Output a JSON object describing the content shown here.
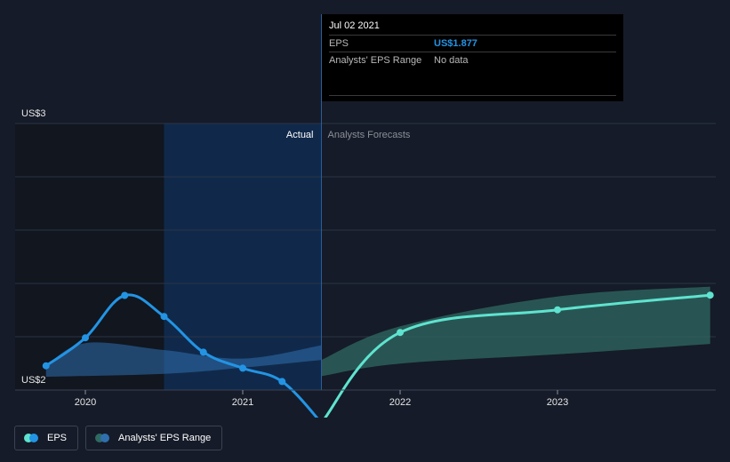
{
  "chart_data": {
    "type": "line",
    "y_axis": {
      "min": 2,
      "max": 3,
      "top_label": "US$3",
      "bottom_label": "US$2",
      "gridlines": [
        2.2,
        2.4,
        2.6,
        2.8
      ]
    },
    "x_axis": {
      "min": 2019.5,
      "max": 2023.97,
      "ticks": [
        2020,
        2021,
        2022,
        2023
      ],
      "tick_labels": [
        "2020",
        "2021",
        "2022",
        "2023"
      ]
    },
    "divider_x": 2021.5,
    "highlight_start_x": 2020.5,
    "region_labels": {
      "actual": "Actual",
      "forecast": "Analysts Forecasts"
    },
    "series": [
      {
        "name": "EPS",
        "kind": "actual",
        "color": "#2394e4",
        "points": [
          {
            "x": 2019.75,
            "y": 2.091
          },
          {
            "x": 2020.0,
            "y": 2.196
          },
          {
            "x": 2020.25,
            "y": 2.355
          },
          {
            "x": 2020.5,
            "y": 2.276
          },
          {
            "x": 2020.75,
            "y": 2.142
          },
          {
            "x": 2021.0,
            "y": 2.082
          },
          {
            "x": 2021.25,
            "y": 2.032
          },
          {
            "x": 2021.5,
            "y": 1.877
          }
        ]
      },
      {
        "name": "EPS",
        "kind": "forecast",
        "color": "#5fe3cf",
        "points": [
          {
            "x": 2021.5,
            "y": 1.877
          },
          {
            "x": 2022.0,
            "y": 2.216
          },
          {
            "x": 2023.0,
            "y": 2.301
          },
          {
            "x": 2023.97,
            "y": 2.356
          }
        ]
      }
    ],
    "range_actual": {
      "name": "Analysts' EPS Range",
      "color": "#2f6fae",
      "upper": [
        {
          "x": 2019.75,
          "y": 2.09
        },
        {
          "x": 2020.0,
          "y": 2.176
        },
        {
          "x": 2020.5,
          "y": 2.15
        },
        {
          "x": 2021.0,
          "y": 2.118
        },
        {
          "x": 2021.5,
          "y": 2.168
        }
      ],
      "lower": [
        {
          "x": 2021.5,
          "y": 2.113
        },
        {
          "x": 2021.0,
          "y": 2.084
        },
        {
          "x": 2020.5,
          "y": 2.061
        },
        {
          "x": 2019.75,
          "y": 2.05
        }
      ]
    },
    "range_forecast": {
      "name": "Analysts' EPS Range",
      "color": "#2f6a62",
      "upper": [
        {
          "x": 2021.5,
          "y": 2.113
        },
        {
          "x": 2022.0,
          "y": 2.239
        },
        {
          "x": 2023.0,
          "y": 2.351
        },
        {
          "x": 2023.97,
          "y": 2.388
        }
      ],
      "lower": [
        {
          "x": 2023.97,
          "y": 2.173
        },
        {
          "x": 2023.0,
          "y": 2.134
        },
        {
          "x": 2022.0,
          "y": 2.099
        },
        {
          "x": 2021.5,
          "y": 2.052
        }
      ]
    }
  },
  "tooltip": {
    "date": "Jul 02 2021",
    "eps_label": "EPS",
    "eps_value": "US$1.877",
    "range_label": "Analysts' EPS Range",
    "range_value": "No data"
  },
  "legend": {
    "eps_label": "EPS",
    "range_label": "Analysts' EPS Range",
    "eps_colors": [
      "#5fe3cf",
      "#2394e4"
    ],
    "range_colors": [
      "#2f6a62",
      "#2f6fae"
    ]
  }
}
